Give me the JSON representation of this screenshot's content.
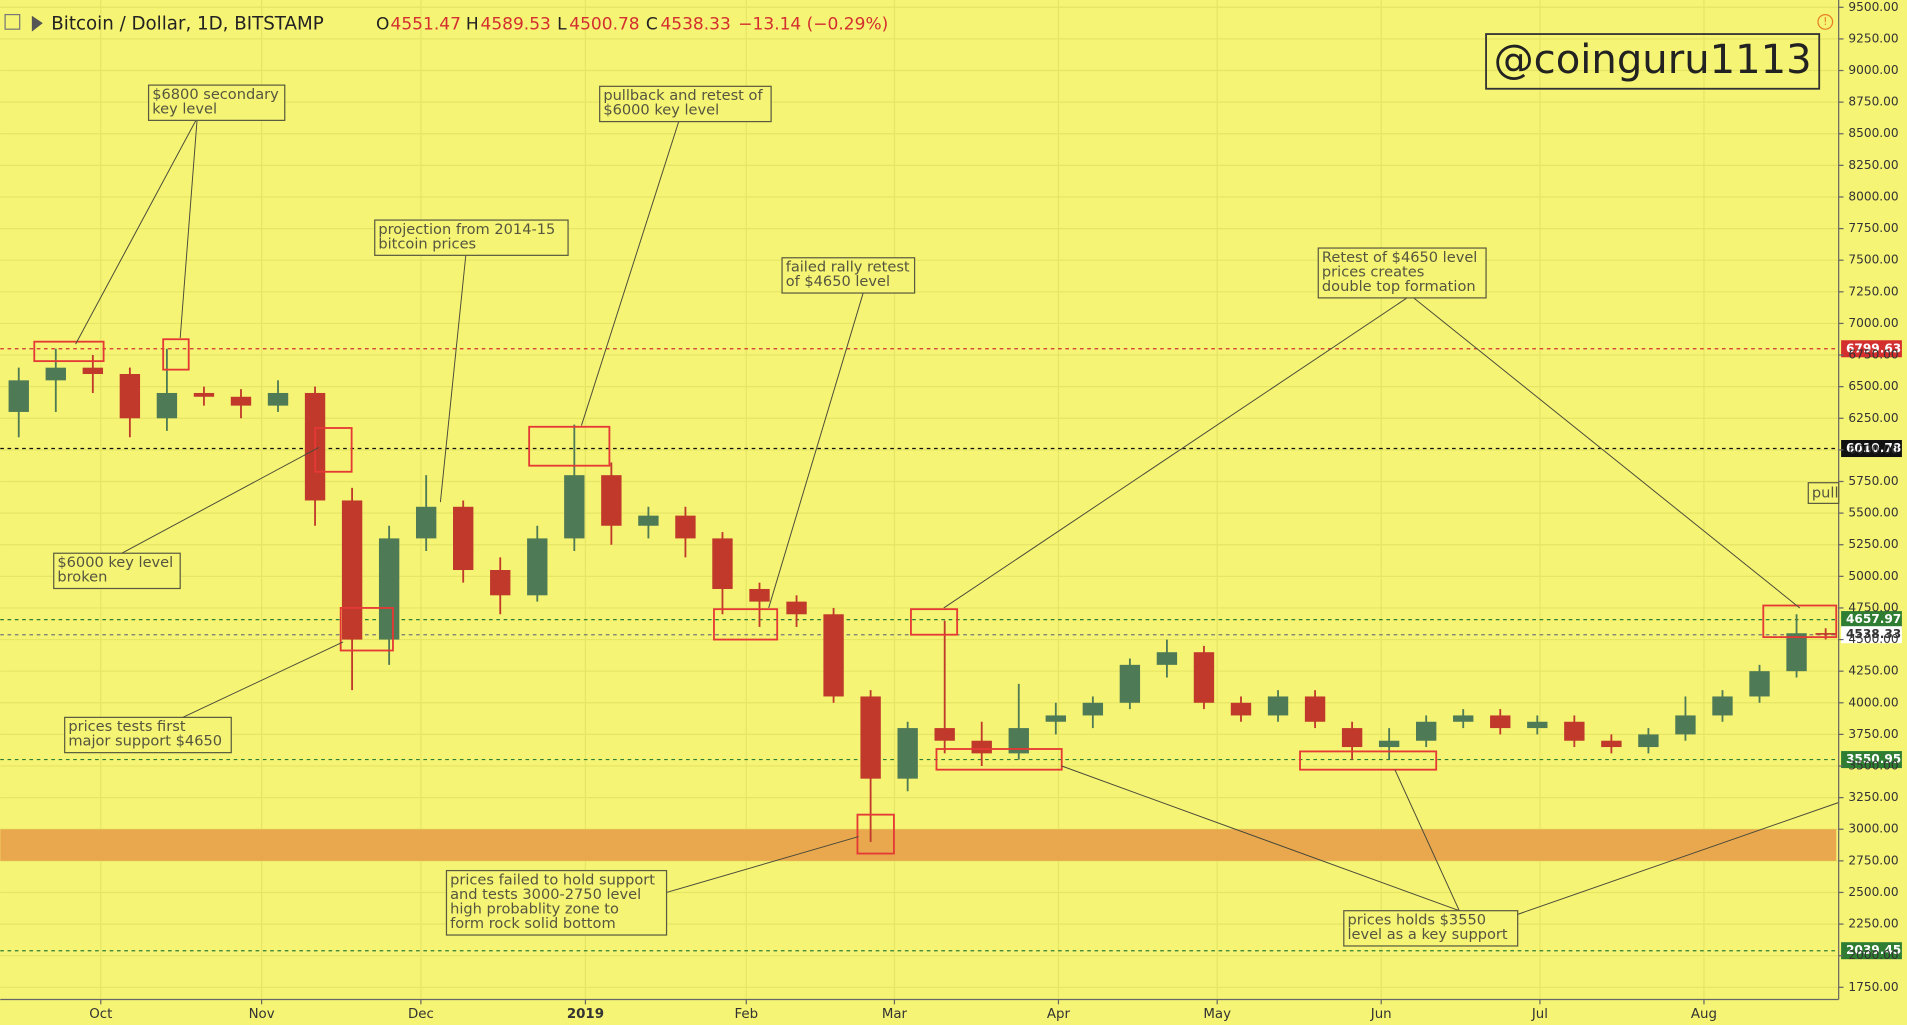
{
  "chart_data": {
    "type": "candlestick",
    "title": "Bitcoin / Dollar, 1D, BITSTAMP",
    "ohlc_header": {
      "o_label": "O",
      "open": 4551.47,
      "h_label": "H",
      "high": 4589.53,
      "l_label": "L",
      "low": 4500.78,
      "c_label": "C",
      "close": 4538.33,
      "change": "−13.14 (−0.29%)"
    },
    "watermark": "@coinguru1113",
    "side_note": "pull",
    "x": [
      3.5,
      10.5,
      17.5,
      24.5,
      31.5,
      38.5,
      45.5,
      52.5,
      59.5,
      66.5,
      73.5,
      80.5,
      87.5,
      94.5,
      101.5,
      108.5,
      115.5,
      122.5,
      129.5,
      136.5,
      143.5,
      150.5,
      157.5,
      164.5,
      171.5,
      178.5,
      185.5,
      192.5,
      199.5,
      206.5,
      213.5,
      220.5,
      227.5,
      234.5,
      241.5,
      248.5,
      255.5,
      262.5,
      269.5,
      276.5,
      283.5,
      290.5,
      297.5,
      304.5,
      311.5,
      318.5,
      325.5,
      332.5,
      339.5,
      345
    ],
    "open": [
      6300,
      6550,
      6650,
      6600,
      6250,
      6450,
      6420,
      6350,
      6450,
      5600,
      4500,
      5300,
      5550,
      5050,
      4850,
      5300,
      5800,
      5400,
      5480,
      5300,
      4900,
      4800,
      4700,
      4050,
      3400,
      3800,
      3700,
      3600,
      3850,
      3900,
      4000,
      4300,
      4400,
      4000,
      3900,
      4050,
      3800,
      3650,
      3700,
      3850,
      3900,
      3800,
      3850,
      3700,
      3650,
      3750,
      3900,
      4050,
      4250,
      4551.47
    ],
    "high": [
      6650,
      6800,
      6750,
      6650,
      6800,
      6500,
      6480,
      6550,
      6500,
      5700,
      5400,
      5800,
      5600,
      5150,
      5400,
      6200,
      5900,
      5550,
      5550,
      5350,
      4950,
      4850,
      4750,
      4100,
      3850,
      4650,
      3850,
      4150,
      4000,
      4050,
      4350,
      4500,
      4450,
      4050,
      4100,
      4100,
      3850,
      3800,
      3900,
      3950,
      3950,
      3900,
      3900,
      3750,
      3800,
      4050,
      4100,
      4300,
      4700,
      4589.53
    ],
    "low": [
      6100,
      6300,
      6450,
      6100,
      6150,
      6350,
      6250,
      6300,
      5400,
      4100,
      4300,
      5200,
      4950,
      4700,
      4800,
      5200,
      5250,
      5300,
      5150,
      4700,
      4600,
      4600,
      4000,
      2900,
      3300,
      3600,
      3500,
      3550,
      3750,
      3800,
      3950,
      4200,
      3950,
      3850,
      3850,
      3800,
      3550,
      3550,
      3650,
      3800,
      3750,
      3750,
      3650,
      3600,
      3600,
      3700,
      3850,
      4000,
      4200,
      4500.78
    ],
    "close": [
      6550,
      6650,
      6600,
      6250,
      6450,
      6420,
      6350,
      6450,
      5600,
      4500,
      5300,
      5550,
      5050,
      4850,
      5300,
      5800,
      5400,
      5480,
      5300,
      4900,
      4800,
      4700,
      4050,
      3400,
      3800,
      3700,
      3600,
      3800,
      3900,
      4000,
      4300,
      4400,
      4000,
      3900,
      4050,
      3850,
      3650,
      3700,
      3850,
      3900,
      3800,
      3850,
      3700,
      3650,
      3750,
      3900,
      4050,
      4250,
      4550,
      4538.33
    ],
    "up_color": "#4f7a56",
    "down_color": "#c0392b",
    "xlim": [
      0,
      347
    ],
    "xticks": [
      {
        "value": 19,
        "label": "Oct"
      },
      {
        "value": 49.4,
        "label": "Nov"
      },
      {
        "value": 79.5,
        "label": "Dec"
      },
      {
        "value": 110.6,
        "label": "2019"
      },
      {
        "value": 141,
        "label": "Feb"
      },
      {
        "value": 169,
        "label": "Mar"
      },
      {
        "value": 200,
        "label": "Apr"
      },
      {
        "value": 230,
        "label": "May"
      },
      {
        "value": 261,
        "label": "Jun"
      },
      {
        "value": 291,
        "label": "Jul"
      },
      {
        "value": 322,
        "label": "Aug"
      }
    ],
    "ylim": [
      1750,
      9500
    ],
    "yticks": [
      {
        "value": 1750,
        "label": "1750.00"
      },
      {
        "value": 2000,
        "label": "2000.00"
      },
      {
        "value": 2250,
        "label": "2250.00"
      },
      {
        "value": 2500,
        "label": "2500.00"
      },
      {
        "value": 2750,
        "label": "2750.00"
      },
      {
        "value": 3000,
        "label": "3000.00"
      },
      {
        "value": 3250,
        "label": "3250.00"
      },
      {
        "value": 3500,
        "label": "3500.00"
      },
      {
        "value": 3750,
        "label": "3750.00"
      },
      {
        "value": 4000,
        "label": "4000.00"
      },
      {
        "value": 4250,
        "label": "4250.00"
      },
      {
        "value": 4500,
        "label": "4500.00"
      },
      {
        "value": 4750,
        "label": "4750.00"
      },
      {
        "value": 5000,
        "label": "5000.00"
      },
      {
        "value": 5250,
        "label": "5250.00"
      },
      {
        "value": 5500,
        "label": "5500.00"
      },
      {
        "value": 5750,
        "label": "5750.00"
      },
      {
        "value": 6000,
        "label": "6000.00"
      },
      {
        "value": 6250,
        "label": "6250.00"
      },
      {
        "value": 6500,
        "label": "6500.00"
      },
      {
        "value": 6750,
        "label": "6750.00"
      },
      {
        "value": 7000,
        "label": "7000.00"
      },
      {
        "value": 7250,
        "label": "7250.00"
      },
      {
        "value": 7500,
        "label": "7500.00"
      },
      {
        "value": 7750,
        "label": "7750.00"
      },
      {
        "value": 8000,
        "label": "8000.00"
      },
      {
        "value": 8250,
        "label": "8250.00"
      },
      {
        "value": 8500,
        "label": "8500.00"
      },
      {
        "value": 8750,
        "label": "8750.00"
      },
      {
        "value": 9000,
        "label": "9000.00"
      },
      {
        "value": 9250,
        "label": "9250.00"
      },
      {
        "value": 9500,
        "label": "9500.00"
      }
    ],
    "grid": true,
    "levels": [
      {
        "value": 6799.63,
        "color": "#d32f2f",
        "text_color": "#ffffff"
      },
      {
        "value": 6010.78,
        "color": "#111111",
        "text_color": "#ffffff"
      },
      {
        "value": 4657.97,
        "color": "#2e7d32",
        "text_color": "#ffffff"
      },
      {
        "value": 4538.33,
        "color": "#ffffff",
        "text_color": "#333333"
      },
      {
        "value": 3550.95,
        "color": "#2e7d32",
        "text_color": "#ffffff"
      },
      {
        "value": 2039.45,
        "color": "#2e7d32",
        "text_color": "#ffffff"
      }
    ],
    "zones": [
      {
        "from": 2750,
        "to": 3000,
        "color": "#e8a04a"
      }
    ],
    "annotations": [
      [
        "$6800 secondary",
        "key level"
      ],
      [
        "pullback and retest of",
        "$6000 key level"
      ],
      [
        "projection from 2014-15",
        "bitcoin prices"
      ],
      [
        "failed rally retest",
        "of $4650 level"
      ],
      [
        "Retest of $4650 level",
        "prices creates",
        "double top formation"
      ],
      [
        "$6000 key level",
        "broken"
      ],
      [
        "prices tests first",
        "major support $4650"
      ],
      [
        "prices failed to hold support",
        "and tests 3000-2750 level",
        "high probablity zone to",
        "form rock solid bottom"
      ],
      [
        "prices holds $3550",
        "level as a key support"
      ]
    ]
  }
}
